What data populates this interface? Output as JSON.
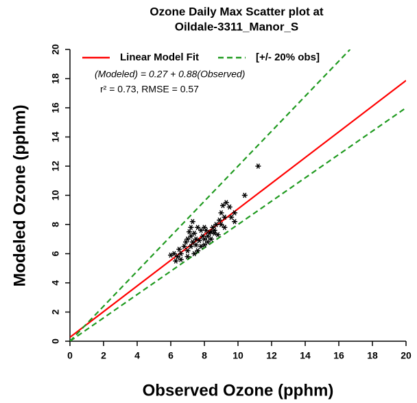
{
  "chart_data": {
    "type": "scatter",
    "title": [
      "Ozone Daily Max Scatter plot at",
      "Oildale-3311_Manor_S"
    ],
    "x_label": "Observed Ozone (pphm)",
    "y_label": "Modeled Ozone (pphm)",
    "xlim": [
      0,
      20
    ],
    "ylim": [
      0,
      20
    ],
    "xticks": [
      0,
      2,
      4,
      6,
      8,
      10,
      12,
      14,
      16,
      18,
      20
    ],
    "yticks": [
      0,
      2,
      4,
      6,
      8,
      10,
      12,
      14,
      16,
      18,
      20
    ],
    "annotations": [
      "(Modeled) = 0.27 + 0.88(Observed)",
      "r² = 0.73,  RMSE = 0.57"
    ],
    "series": [
      {
        "color": "#000000",
        "marker": "*",
        "x": [
          11.2,
          10.4,
          9.3,
          9.1,
          9.5,
          9.0,
          9.8,
          9.6,
          9.8,
          9.2,
          8.9,
          8.7,
          8.5,
          8.4,
          8.6,
          8.2,
          8.0,
          8.0,
          7.8,
          7.6,
          7.3,
          7.2,
          7.1,
          7.0,
          7.4,
          7.5,
          7.3,
          7.2,
          7.0,
          6.8,
          6.6,
          6.5,
          6.4,
          6.2,
          6.3,
          6.0,
          6.6,
          7.0,
          7.4,
          7.6,
          7.8,
          8.0,
          8.2,
          7.9,
          8.3,
          8.8,
          9.2,
          8.6,
          7.7,
          7.5,
          8.1,
          9.0,
          7.2,
          6.9,
          8.4
        ],
        "values": [
          12.0,
          10.0,
          9.5,
          9.3,
          9.2,
          8.8,
          8.8,
          8.5,
          8.2,
          8.5,
          8.3,
          8.0,
          7.8,
          7.5,
          7.6,
          7.2,
          7.0,
          7.8,
          7.6,
          7.8,
          8.2,
          7.8,
          7.5,
          7.0,
          7.4,
          7.0,
          6.8,
          6.5,
          6.2,
          6.5,
          6.0,
          6.3,
          5.8,
          6.0,
          5.5,
          5.9,
          5.6,
          5.8,
          6.0,
          6.2,
          6.5,
          6.6,
          6.8,
          7.2,
          7.4,
          7.3,
          7.8,
          7.4,
          6.9,
          6.6,
          7.6,
          8.0,
          7.2,
          6.8,
          7.0
        ]
      }
    ],
    "lines": [
      {
        "name": "Linear Model Fit",
        "color": "#ff0000",
        "dashed": false,
        "x": [
          0,
          20
        ],
        "values": [
          0.27,
          17.87
        ]
      },
      {
        "name": "[+/- 20% obs]",
        "color": "#1f9a1f",
        "dashed": true,
        "x": [
          0,
          16.67
        ],
        "values": [
          0,
          20
        ]
      },
      {
        "color": "#1f9a1f",
        "dashed": true,
        "x": [
          0,
          20
        ],
        "values": [
          0,
          16
        ]
      }
    ]
  }
}
